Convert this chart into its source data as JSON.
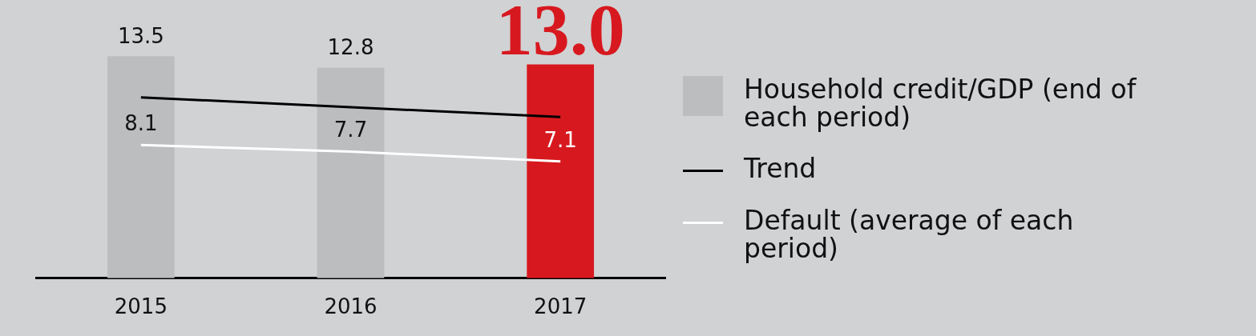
{
  "chart_data": {
    "type": "bar",
    "categories": [
      "2015",
      "2016",
      "2017"
    ],
    "legend": "right",
    "series": [
      {
        "name": "Household credit/GDP (end of each period)",
        "color": "#bcbdbf",
        "colors": [
          "#bcbdbf",
          "#bcbdbf",
          "#d7191f"
        ],
        "values": [
          13.5,
          12.8,
          13.0
        ],
        "value_labels": [
          "13.5",
          "12.8",
          "13.0"
        ]
      },
      {
        "name": "Trend",
        "type": "line",
        "color": "#000000",
        "values": [
          11.0,
          10.4,
          9.8
        ]
      },
      {
        "name": "Default (average of each period)",
        "type": "line",
        "color": "#ffffff",
        "values": [
          8.1,
          7.7,
          7.1
        ],
        "value_labels": [
          "8.1",
          "7.7",
          "7.1"
        ]
      }
    ]
  }
}
